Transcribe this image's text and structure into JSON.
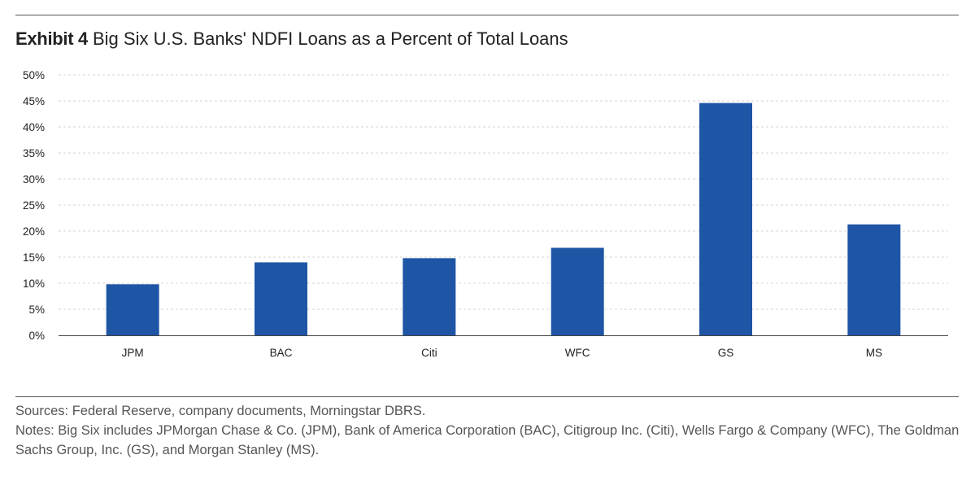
{
  "header": {
    "exhibit": "Exhibit 4",
    "title": "Big Six U.S. Banks' NDFI Loans as a Percent of Total Loans"
  },
  "chart_data": {
    "type": "bar",
    "categories": [
      "JPM",
      "BAC",
      "Citi",
      "WFC",
      "GS",
      "MS"
    ],
    "values": [
      9.8,
      14.0,
      14.8,
      16.8,
      44.6,
      21.3
    ],
    "ylim": [
      0,
      50
    ],
    "yticks": [
      0,
      5,
      10,
      15,
      20,
      25,
      30,
      35,
      40,
      45,
      50
    ],
    "ytick_labels": [
      "0%",
      "5%",
      "10%",
      "15%",
      "20%",
      "25%",
      "30%",
      "35%",
      "40%",
      "45%",
      "50%"
    ],
    "grid": true,
    "legend": "none",
    "bar_color": "#1f55a5"
  },
  "footer": {
    "sources": "Sources: Federal Reserve, company documents, Morningstar DBRS.",
    "notes": "Notes: Big Six includes JPMorgan Chase & Co. (JPM), Bank of America Corporation (BAC), Citigroup Inc. (Citi), Wells Fargo & Company (WFC), The Goldman Sachs Group, Inc. (GS), and Morgan Stanley (MS)."
  }
}
